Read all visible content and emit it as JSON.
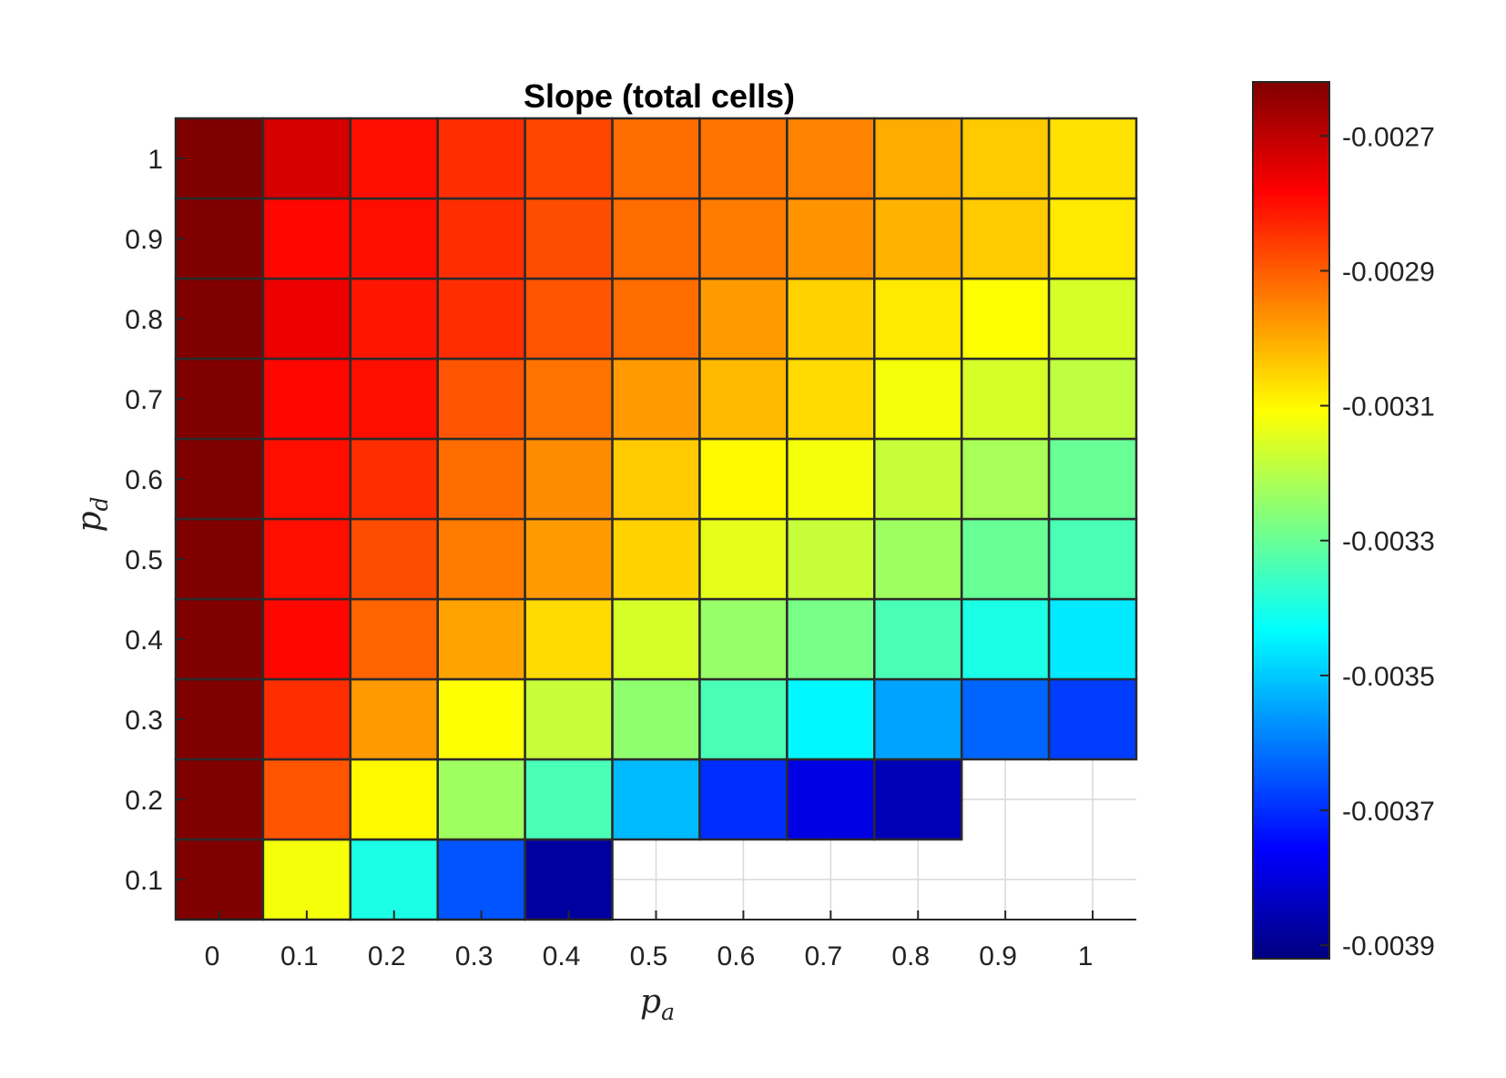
{
  "chart_data": {
    "type": "heatmap",
    "title": "Slope (total cells)",
    "xlabel": {
      "base": "p",
      "sub": "a"
    },
    "ylabel": {
      "base": "p",
      "sub": "d"
    },
    "x": [
      0,
      0.1,
      0.2,
      0.3,
      0.4,
      0.5,
      0.6,
      0.7,
      0.8,
      0.9,
      1
    ],
    "y": [
      0.1,
      0.2,
      0.3,
      0.4,
      0.5,
      0.6,
      0.7,
      0.8,
      0.9,
      1
    ],
    "x_tick_labels": [
      "0",
      "0.1",
      "0.2",
      "0.3",
      "0.4",
      "0.5",
      "0.6",
      "0.7",
      "0.8",
      "0.9",
      "1"
    ],
    "y_tick_labels": [
      "0.1",
      "0.2",
      "0.3",
      "0.4",
      "0.5",
      "0.6",
      "0.7",
      "0.8",
      "0.9",
      "1"
    ],
    "values": [
      [
        -0.00262,
        -0.00312,
        -0.0034,
        -0.00365,
        -0.00388,
        null,
        null,
        null,
        null,
        null,
        null
      ],
      [
        -0.00262,
        -0.00289,
        -0.0031,
        -0.00323,
        -0.00334,
        -0.00352,
        -0.0037,
        -0.00379,
        -0.00385,
        null,
        null
      ],
      [
        -0.00262,
        -0.00284,
        -0.00298,
        -0.00311,
        -0.00318,
        -0.00325,
        -0.00334,
        -0.00344,
        -0.00355,
        -0.00363,
        -0.00368
      ],
      [
        -0.00262,
        -0.00279,
        -0.00291,
        -0.00299,
        -0.00306,
        -0.00316,
        -0.00324,
        -0.00328,
        -0.00334,
        -0.0034,
        -0.00346
      ],
      [
        -0.00262,
        -0.0028,
        -0.00288,
        -0.00294,
        -0.00298,
        -0.00305,
        -0.00314,
        -0.00318,
        -0.00323,
        -0.0033,
        -0.00334
      ],
      [
        -0.00262,
        -0.0028,
        -0.00284,
        -0.00292,
        -0.00296,
        -0.00304,
        -0.0031,
        -0.00312,
        -0.00318,
        -0.00322,
        -0.0033
      ],
      [
        -0.00262,
        -0.00279,
        -0.0028,
        -0.00289,
        -0.00293,
        -0.00298,
        -0.00302,
        -0.00306,
        -0.00312,
        -0.00316,
        -0.00319
      ],
      [
        -0.00262,
        -0.00276,
        -0.00281,
        -0.00284,
        -0.00289,
        -0.00292,
        -0.00298,
        -0.00305,
        -0.00308,
        -0.00311,
        -0.00316
      ],
      [
        -0.00262,
        -0.00279,
        -0.0028,
        -0.00284,
        -0.00288,
        -0.00292,
        -0.00294,
        -0.00297,
        -0.00301,
        -0.00304,
        -0.00308
      ],
      [
        -0.00262,
        -0.00273,
        -0.0028,
        -0.00284,
        -0.00287,
        -0.00292,
        -0.00293,
        -0.00295,
        -0.003,
        -0.00304,
        -0.00307
      ]
    ],
    "colormap": "jet",
    "clim": [
      -0.00392,
      -0.00262
    ],
    "colorbar": {
      "ticks": [
        -0.0027,
        -0.0029,
        -0.0031,
        -0.0033,
        -0.0035,
        -0.0037,
        -0.0039
      ],
      "tick_labels": [
        "-0.0027",
        "-0.0029",
        "-0.0031",
        "-0.0033",
        "-0.0035",
        "-0.0037",
        "-0.0039"
      ]
    },
    "grid": true,
    "colors": {
      "cell_border": "#2b2b2b",
      "grid": "#d9d9d9",
      "axis": "#262626"
    }
  }
}
